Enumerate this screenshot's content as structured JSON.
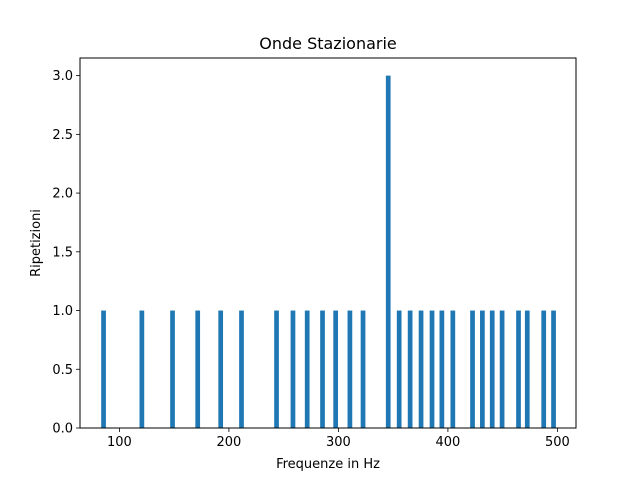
{
  "chart_data": {
    "type": "bar",
    "title": "Onde Stazionarie",
    "xlabel": "Frequenze in Hz",
    "ylabel": "Ripetizioni",
    "xlim": [
      64,
      517
    ],
    "ylim": [
      0,
      3.15
    ],
    "xticks": [
      100,
      200,
      300,
      400,
      500
    ],
    "yticks": [
      0.0,
      0.5,
      1.0,
      1.5,
      2.0,
      2.5,
      3.0
    ],
    "bar_width": 4.3,
    "color": "#1f77b4",
    "grid": false,
    "x": [
      85.5,
      120.5,
      148.5,
      171.5,
      192.5,
      211.5,
      243.5,
      258.5,
      271.5,
      285.5,
      297.5,
      310.5,
      322.5,
      345.5,
      355.5,
      365.5,
      375.5,
      385.5,
      394.5,
      404.5,
      422.5,
      431.5,
      440.5,
      449.5,
      464.5,
      472.5,
      487.5,
      496.5
    ],
    "values": [
      1,
      1,
      1,
      1,
      1,
      1,
      1,
      1,
      1,
      1,
      1,
      1,
      1,
      3,
      1,
      1,
      1,
      1,
      1,
      1,
      1,
      1,
      1,
      1,
      1,
      1,
      1,
      1
    ]
  }
}
